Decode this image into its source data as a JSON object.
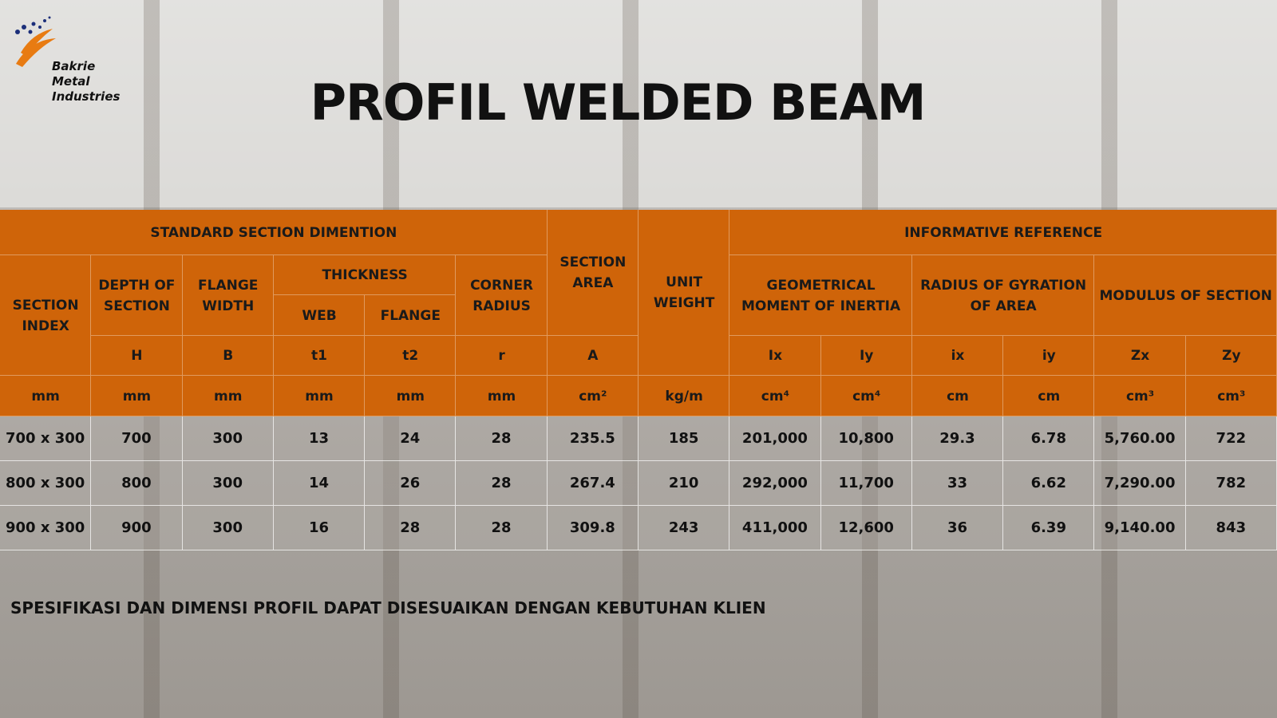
{
  "header": {
    "logo": [
      "Bakrie",
      "Metal",
      "Industries"
    ],
    "title": "PROFIL WELDED BEAM"
  },
  "table": {
    "groups": [
      "STANDARD SECTION DIMENTION",
      "INFORMATIVE REFERENCE"
    ],
    "headers": {
      "section_index": "SECTION INDEX",
      "depth": "DEPTH OF SECTION",
      "flange_width": "FLANGE WIDTH",
      "thickness": "THICKNESS",
      "web": "WEB",
      "flange": "FLANGE",
      "corner_radius": "CORNER RADIUS",
      "section_area": "SECTION AREA",
      "unit_weight": "UNIT WEIGHT",
      "moment_of_inertia": "GEOMETRICAL MOMENT OF INERTIA",
      "radius_of_gyration": "RADIUS OF GYRATION OF AREA",
      "modulus": "MODULUS OF SECTION"
    },
    "symbols": [
      "H",
      "B",
      "t1",
      "t2",
      "r",
      "A",
      "Ix",
      "Iy",
      "ix",
      "iy",
      "Zx",
      "Zy"
    ],
    "units": [
      "mm",
      "mm",
      "mm",
      "mm",
      "mm",
      "mm",
      "cm²",
      "kg/m",
      "cm⁴",
      "cm⁴",
      "cm",
      "cm",
      "cm³",
      "cm³"
    ],
    "rows": [
      [
        "700 x 300",
        "700",
        "300",
        "13",
        "24",
        "28",
        "235.5",
        "185",
        "201,000",
        "10,800",
        "29.3",
        "6.78",
        "5,760.00",
        "722"
      ],
      [
        "800 x 300",
        "800",
        "300",
        "14",
        "26",
        "28",
        "267.4",
        "210",
        "292,000",
        "11,700",
        "33",
        "6.62",
        "7,290.00",
        "782"
      ],
      [
        "900 x 300",
        "900",
        "300",
        "16",
        "28",
        "28",
        "309.8",
        "243",
        "411,000",
        "12,600",
        "36",
        "6.39",
        "9,140.00",
        "843"
      ]
    ]
  },
  "footer": "SPESIFIKASI DAN DIMENSI PROFIL DAPAT DISESUAIKAN DENGAN KEBUTUHAN KLIEN"
}
